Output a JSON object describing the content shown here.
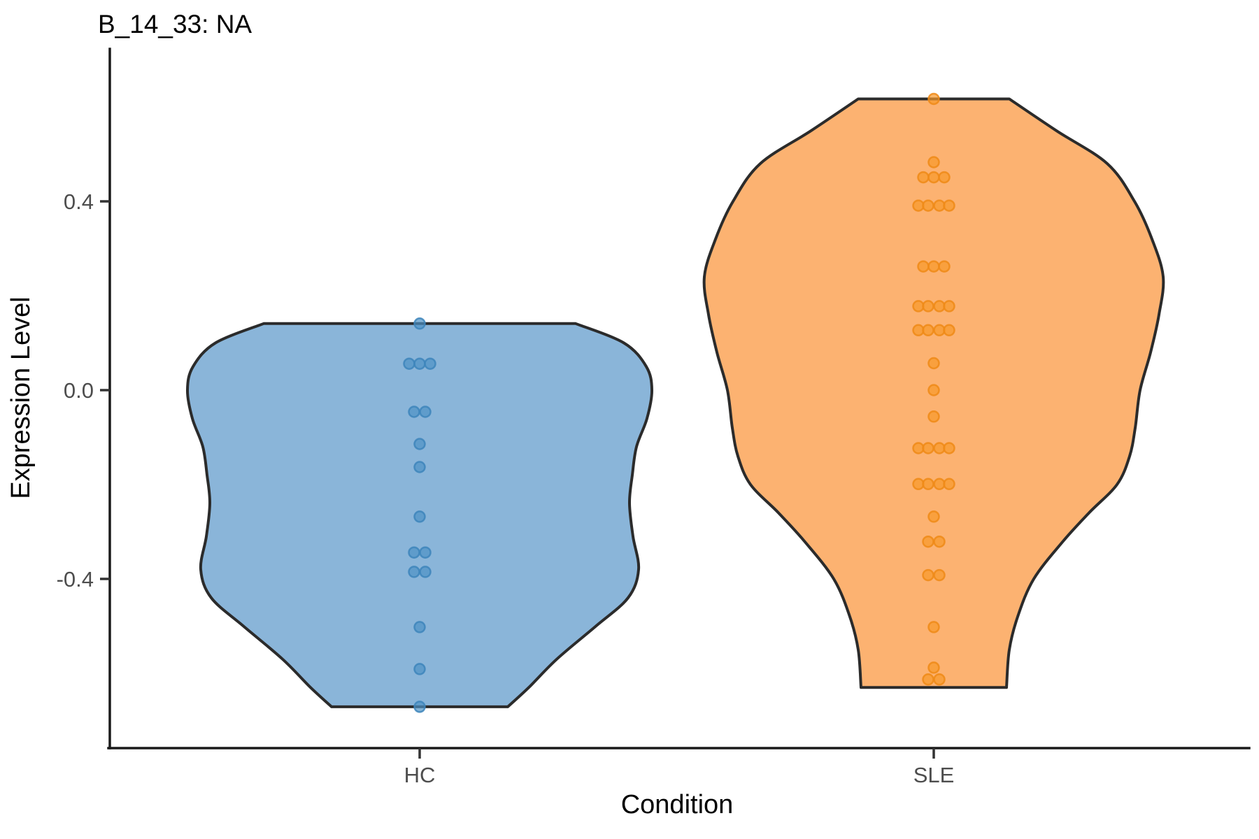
{
  "chart_data": {
    "type": "violin",
    "title": "B_14_33: NA",
    "xlabel": "Condition",
    "ylabel": "Expression Level",
    "categories": [
      "HC",
      "SLE"
    ],
    "y_ticks": [
      {
        "label": "0.4",
        "value": 0.4
      },
      {
        "label": "0.0",
        "value": 0.0
      },
      {
        "label": "-0.4",
        "value": -0.4
      }
    ],
    "ylim": [
      -0.76,
      0.72
    ],
    "grid": "off",
    "legend_position": "none",
    "outline_color": "#2B2B2B",
    "series": [
      {
        "name": "HC",
        "fill": "#8AB5D9",
        "point_fill": "#4D92C5",
        "point_ring": "#3D85BB",
        "flat_top_value": 0.141,
        "flat_bottom_value": -0.671,
        "violin_profile": [
          [
            0.141,
            223
          ],
          [
            0.1,
            292
          ],
          [
            0.05,
            324
          ],
          [
            0.0,
            332
          ],
          [
            -0.06,
            325
          ],
          [
            -0.12,
            310
          ],
          [
            -0.18,
            304
          ],
          [
            -0.24,
            300
          ],
          [
            -0.31,
            305
          ],
          [
            -0.38,
            313
          ],
          [
            -0.44,
            298
          ],
          [
            -0.5,
            252
          ],
          [
            -0.57,
            196
          ],
          [
            -0.63,
            156
          ],
          [
            -0.671,
            126
          ]
        ],
        "point_rows": [
          {
            "value": 0.141,
            "count": 1
          },
          {
            "value": 0.056,
            "count": 3
          },
          {
            "value": -0.046,
            "count": 2
          },
          {
            "value": -0.114,
            "count": 1
          },
          {
            "value": -0.163,
            "count": 1
          },
          {
            "value": -0.268,
            "count": 1
          },
          {
            "value": -0.344,
            "count": 2
          },
          {
            "value": -0.385,
            "count": 2
          },
          {
            "value": -0.502,
            "count": 1
          },
          {
            "value": -0.591,
            "count": 1
          },
          {
            "value": -0.671,
            "count": 1
          }
        ],
        "n_points": 16
      },
      {
        "name": "SLE",
        "fill": "#FCB271",
        "point_fill": "#F8982A",
        "point_ring": "#EF8A16",
        "flat_top_value": 0.617,
        "flat_bottom_value": -0.63,
        "violin_profile": [
          [
            0.617,
            108
          ],
          [
            0.55,
            175
          ],
          [
            0.48,
            248
          ],
          [
            0.4,
            287
          ],
          [
            0.32,
            312
          ],
          [
            0.24,
            328
          ],
          [
            0.16,
            322
          ],
          [
            0.08,
            310
          ],
          [
            0.0,
            295
          ],
          [
            -0.08,
            288
          ],
          [
            -0.14,
            280
          ],
          [
            -0.2,
            262
          ],
          [
            -0.26,
            222
          ],
          [
            -0.32,
            185
          ],
          [
            -0.4,
            143
          ],
          [
            -0.48,
            120
          ],
          [
            -0.55,
            108
          ],
          [
            -0.63,
            104
          ]
        ],
        "point_rows": [
          {
            "value": 0.617,
            "count": 1
          },
          {
            "value": 0.483,
            "count": 1
          },
          {
            "value": 0.451,
            "count": 3
          },
          {
            "value": 0.391,
            "count": 4
          },
          {
            "value": 0.262,
            "count": 3
          },
          {
            "value": 0.178,
            "count": 4
          },
          {
            "value": 0.127,
            "count": 4
          },
          {
            "value": 0.057,
            "count": 1
          },
          {
            "value": 0.0,
            "count": 1
          },
          {
            "value": -0.056,
            "count": 1
          },
          {
            "value": -0.123,
            "count": 4
          },
          {
            "value": -0.199,
            "count": 4
          },
          {
            "value": -0.268,
            "count": 1
          },
          {
            "value": -0.321,
            "count": 2
          },
          {
            "value": -0.392,
            "count": 2
          },
          {
            "value": -0.502,
            "count": 1
          },
          {
            "value": -0.588,
            "count": 1
          },
          {
            "value": -0.613,
            "count": 2
          }
        ],
        "n_points": 40
      }
    ]
  }
}
